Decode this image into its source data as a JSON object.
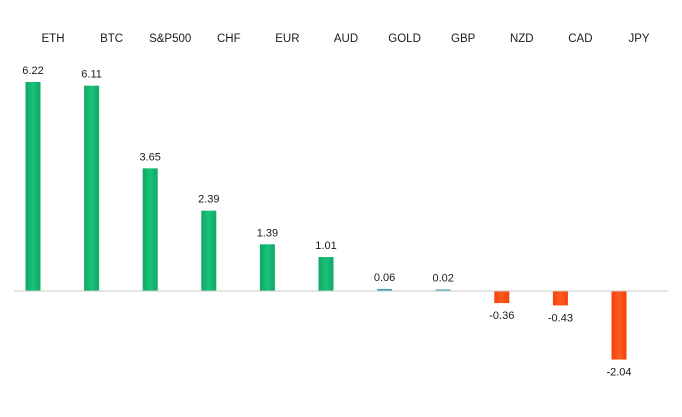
{
  "chart_data": {
    "type": "bar",
    "title": "",
    "xlabel": "",
    "ylabel": "",
    "categories": [
      "ETH",
      "BTC",
      "S&P500",
      "CHF",
      "EUR",
      "AUD",
      "GOLD",
      "GBP",
      "NZD",
      "CAD",
      "JPY"
    ],
    "values": [
      6.22,
      6.11,
      3.65,
      2.39,
      1.39,
      1.01,
      0.06,
      0.02,
      -0.36,
      -0.43,
      -2.04
    ],
    "value_labels": [
      "6.22",
      "6.11",
      "3.65",
      "2.39",
      "1.39",
      "1.01",
      "0.06",
      "0.02",
      "-0.36",
      "-0.43",
      "-2.04"
    ],
    "ylim": [
      -2.04,
      6.22
    ],
    "grid": false,
    "legend": "none",
    "colors": {
      "positive": "#12b36a",
      "positive_small": "#3aa0c8",
      "negative": "#ff4a12",
      "axis": "#c8c8c8"
    }
  }
}
